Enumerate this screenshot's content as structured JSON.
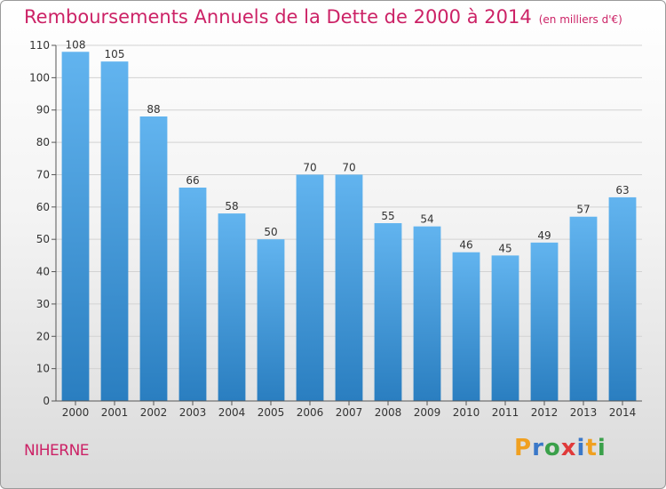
{
  "title": "Remboursements Annuels de la Dette de 2000 à 2014",
  "unit_note": "(en milliers d'€)",
  "commune": "NIHERNE",
  "logo": {
    "letters": [
      "P",
      "r",
      "o",
      "x",
      "i",
      "t",
      "i"
    ],
    "colors": [
      "#f0a020",
      "#3a78c8",
      "#3aa04a",
      "#e03a3a",
      "#3a78c8",
      "#f0a020",
      "#3aa04a"
    ]
  },
  "colors": {
    "bar_light": "#62b4ef",
    "bar_dark": "#2a7ec0",
    "accent": "#cc2266"
  },
  "chart_data": {
    "type": "bar",
    "categories": [
      "2000",
      "2001",
      "2002",
      "2003",
      "2004",
      "2005",
      "2006",
      "2007",
      "2008",
      "2009",
      "2010",
      "2011",
      "2012",
      "2013",
      "2014"
    ],
    "values": [
      108,
      105,
      88,
      66,
      58,
      50,
      70,
      70,
      55,
      54,
      46,
      45,
      49,
      57,
      63
    ],
    "ylim": [
      0,
      110
    ],
    "yticks": [
      0,
      10,
      20,
      30,
      40,
      50,
      60,
      70,
      80,
      90,
      100,
      110
    ],
    "grid": true
  }
}
